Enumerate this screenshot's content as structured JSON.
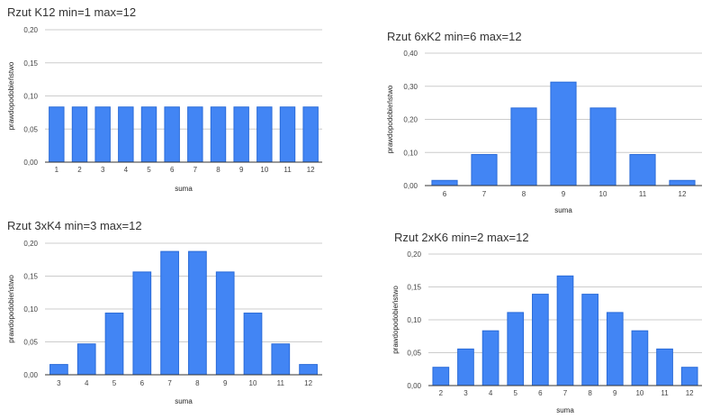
{
  "chart_data": [
    {
      "type": "bar",
      "title": "Rzut K12  min=1  max=12",
      "xlabel": "suma",
      "ylabel": "prawdopodobieństwo",
      "ylim": [
        0,
        0.2
      ],
      "yticks": [
        "0,00",
        "0,05",
        "0,10",
        "0,15",
        "0,20"
      ],
      "categories": [
        "1",
        "2",
        "3",
        "4",
        "5",
        "6",
        "7",
        "8",
        "9",
        "10",
        "11",
        "12"
      ],
      "values": [
        0.0833,
        0.0833,
        0.0833,
        0.0833,
        0.0833,
        0.0833,
        0.0833,
        0.0833,
        0.0833,
        0.0833,
        0.0833,
        0.0833
      ],
      "color": "#4285f4"
    },
    {
      "type": "bar",
      "title": "Rzut 6xK2  min=6  max=12",
      "xlabel": "suma",
      "ylabel": "prawdopodobieństwo",
      "ylim": [
        0,
        0.4
      ],
      "yticks": [
        "0,00",
        "0,10",
        "0,20",
        "0,30",
        "0,40"
      ],
      "categories": [
        "6",
        "7",
        "8",
        "9",
        "10",
        "11",
        "12"
      ],
      "values": [
        0.0156,
        0.0938,
        0.2344,
        0.3125,
        0.2344,
        0.0938,
        0.0156
      ],
      "color": "#4285f4"
    },
    {
      "type": "bar",
      "title": "Rzut 3xK4  min=3  max=12",
      "xlabel": "suma",
      "ylabel": "prawdopodobieństwo",
      "ylim": [
        0,
        0.2
      ],
      "yticks": [
        "0,00",
        "0,05",
        "0,10",
        "0,15",
        "0,20"
      ],
      "categories": [
        "3",
        "4",
        "5",
        "6",
        "7",
        "8",
        "9",
        "10",
        "11",
        "12"
      ],
      "values": [
        0.0156,
        0.0469,
        0.0938,
        0.1563,
        0.1875,
        0.1875,
        0.1563,
        0.0938,
        0.0469,
        0.0156
      ],
      "color": "#4285f4"
    },
    {
      "type": "bar",
      "title": "Rzut 2xK6  min=2  max=12",
      "xlabel": "suma",
      "ylabel": "prawdopodobieństwo",
      "ylim": [
        0,
        0.2
      ],
      "yticks": [
        "0,00",
        "0,05",
        "0,10",
        "0,15",
        "0,20"
      ],
      "categories": [
        "2",
        "3",
        "4",
        "5",
        "6",
        "7",
        "8",
        "9",
        "10",
        "11",
        "12"
      ],
      "values": [
        0.0278,
        0.0556,
        0.0833,
        0.1111,
        0.1389,
        0.1667,
        0.1389,
        0.1111,
        0.0833,
        0.0556,
        0.0278
      ],
      "color": "#4285f4"
    }
  ]
}
